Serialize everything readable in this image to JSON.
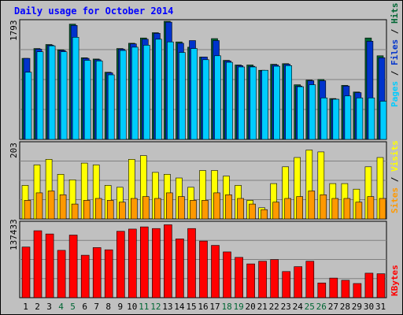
{
  "chart_data": {
    "type": "bar",
    "title": "Daily usage for October 2014",
    "categories": [
      "1",
      "2",
      "3",
      "4",
      "5",
      "6",
      "7",
      "8",
      "9",
      "10",
      "11",
      "12",
      "13",
      "14",
      "15",
      "16",
      "17",
      "18",
      "19",
      "20",
      "21",
      "22",
      "23",
      "24",
      "25",
      "26",
      "27",
      "28",
      "29",
      "30",
      "31"
    ],
    "weekend_days": [
      "4",
      "5",
      "11",
      "12",
      "18",
      "19",
      "25",
      "26"
    ],
    "panels": [
      {
        "name": "hits-files-pages",
        "max_label": "1793",
        "ylim": [
          0,
          1793
        ],
        "legend": [
          "Pages",
          "Files",
          "Hits"
        ],
        "series": [
          {
            "name": "Hits",
            "color": "#006633",
            "values": [
              1230,
              1380,
              1440,
              1360,
              1750,
              1240,
              1220,
              1020,
              1380,
              1460,
              1540,
              1620,
              1793,
              1480,
              1400,
              1250,
              1530,
              1200,
              1130,
              1130,
              1050,
              1140,
              1150,
              830,
              900,
              910,
              620,
              820,
              720,
              1540,
              1270
            ]
          },
          {
            "name": "Files",
            "color": "#0033cc",
            "values": [
              1230,
              1370,
              1430,
              1350,
              1730,
              1230,
              1210,
              1010,
              1370,
              1450,
              1520,
              1610,
              1780,
              1460,
              1500,
              1250,
              1500,
              1190,
              1120,
              1110,
              1040,
              1130,
              1140,
              810,
              890,
              890,
              610,
              810,
              710,
              1490,
              1240
            ]
          },
          {
            "name": "Pages",
            "color": "#00ccff",
            "values": [
              1020,
              1330,
              1420,
              1330,
              1550,
              1200,
              1190,
              980,
              1350,
              1400,
              1430,
              1520,
              1480,
              1320,
              1380,
              1210,
              1270,
              1170,
              1100,
              1100,
              1050,
              1110,
              1120,
              800,
              830,
              630,
              610,
              660,
              630,
              630,
              580
            ]
          }
        ]
      },
      {
        "name": "visits-sites",
        "max_label": "203",
        "ylim": [
          0,
          203
        ],
        "legend": [
          "Sites",
          "Visits"
        ],
        "series": [
          {
            "name": "Visits",
            "color": "#ffff00",
            "values": [
              90,
              145,
              160,
              120,
              105,
              150,
              145,
              90,
              85,
              160,
              170,
              125,
              120,
              110,
              85,
              130,
              130,
              115,
              90,
              50,
              30,
              95,
              140,
              165,
              185,
              180,
              95,
              95,
              80,
              140,
              165
            ]
          },
          {
            "name": "Sites",
            "color": "#ff9900",
            "values": [
              50,
              70,
              75,
              65,
              40,
              50,
              55,
              50,
              45,
              55,
              60,
              55,
              70,
              60,
              50,
              50,
              70,
              65,
              55,
              40,
              25,
              45,
              55,
              60,
              75,
              65,
              55,
              55,
              45,
              60,
              55
            ]
          }
        ]
      },
      {
        "name": "kbytes",
        "max_label": "137433",
        "ylim": [
          0,
          137433
        ],
        "legend": [
          "KBytes"
        ],
        "series": [
          {
            "name": "KBytes",
            "color": "#ff0000",
            "values": [
              93000,
              123000,
              117000,
              87000,
              115000,
              78000,
              92000,
              88000,
              122000,
              126000,
              130000,
              127000,
              134000,
              108000,
              127000,
              104000,
              96000,
              84000,
              74000,
              62000,
              67000,
              70000,
              48000,
              57000,
              67000,
              27000,
              36000,
              32000,
              26000,
              45000,
              44000
            ]
          }
        ]
      }
    ],
    "xlabel": "",
    "ylabel": "",
    "grid": true,
    "legend_placement": "right-vertical"
  }
}
